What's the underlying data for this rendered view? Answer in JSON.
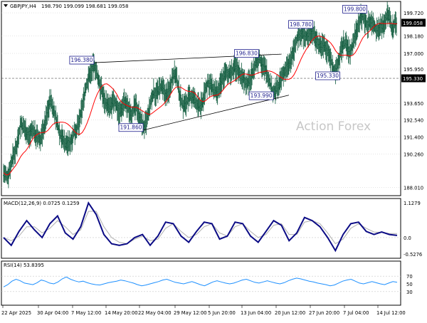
{
  "header": {
    "symbol_label": "GBPJPY,H4",
    "ohlc_label": "198.790 199.099 198.681 199.058",
    "watermark": "Action Forex"
  },
  "colors": {
    "background": "#ffffff",
    "panel_border": "#000000",
    "grid": "#c8c8c8",
    "price_bars": "#0e5a3c",
    "moving_average": "#ff0000",
    "trendline": "#000000",
    "macd_main": "#0b0b85",
    "macd_signal": "#b0b0b0",
    "rsi_line": "#1e90ff",
    "annotation_text": "#1e1e8c",
    "current_price_box": "#000000",
    "level_box": "#000000",
    "watermark": "#c7c7c7"
  },
  "chart_data": [
    {
      "type": "candlestick-ohlc",
      "panel": "price",
      "title": "GBPJPY,H4",
      "ylim": [
        187.6,
        200.2
      ],
      "grid": true,
      "y_ticks": [
        199.72,
        198.18,
        197.0,
        195.95,
        193.65,
        192.54,
        191.4,
        190.26,
        188.01
      ],
      "y_tick_labels": [
        "199.720",
        "198.180",
        "197.000",
        "195.950",
        "193.650",
        "192.540",
        "191.400",
        "190.260",
        "188.010"
      ],
      "x_tick_labels": [
        "22 Apr 2025",
        "30 Apr 04:00",
        "7 May 12:00",
        "14 May 20:00",
        "22 May 04:00",
        "29 May 12:00",
        "5 Jun 20:00",
        "13 Jun 04:00",
        "20 Jun 12:00",
        "27 Jun 20:00",
        "7 Jul 04:00",
        "14 Jul 12:00"
      ],
      "current_price": 199.058,
      "current_price_label": "199.058",
      "horizontal_level": 195.33,
      "horizontal_level_label": "195.330",
      "annotations": [
        {
          "text": "196.380",
          "value": 196.38,
          "bar": 37
        },
        {
          "text": "191.860",
          "value": 191.86,
          "bar": 57
        },
        {
          "text": "196.830",
          "value": 196.83,
          "bar": 104
        },
        {
          "text": "193.990",
          "value": 193.99,
          "bar": 110
        },
        {
          "text": "198.780",
          "value": 198.78,
          "bar": 126
        },
        {
          "text": "195.330",
          "value": 195.33,
          "bar": 137
        },
        {
          "text": "199.800",
          "value": 199.8,
          "bar": 148
        }
      ],
      "trendlines": [
        {
          "from": {
            "bar": 37,
            "value": 196.38
          },
          "to": {
            "bar": 113,
            "value": 196.95
          }
        },
        {
          "from": {
            "bar": 57,
            "value": 191.86
          },
          "to": {
            "bar": 116,
            "value": 194.2
          }
        }
      ],
      "closes": [
        189.0,
        188.7,
        188.9,
        189.6,
        190.2,
        190.5,
        191.5,
        192.3,
        192.0,
        191.9,
        191.4,
        191.7,
        191.9,
        191.5,
        191.3,
        191.2,
        191.8,
        192.4,
        193.2,
        193.9,
        193.4,
        192.8,
        192.2,
        191.6,
        191.3,
        191.0,
        190.9,
        191.0,
        191.4,
        191.8,
        192.0,
        192.5,
        193.4,
        194.4,
        195.0,
        195.6,
        196.0,
        196.2,
        195.5,
        195.0,
        194.4,
        193.9,
        193.6,
        193.3,
        193.5,
        193.8,
        193.5,
        193.0,
        193.3,
        193.8,
        193.5,
        193.2,
        193.0,
        193.3,
        193.4,
        193.0,
        192.4,
        192.0,
        192.3,
        193.0,
        193.8,
        194.4,
        194.3,
        194.5,
        194.7,
        194.5,
        194.2,
        194.4,
        195.0,
        195.7,
        195.5,
        194.8,
        194.0,
        193.5,
        193.6,
        193.9,
        194.1,
        194.0,
        193.8,
        193.5,
        193.4,
        193.8,
        194.5,
        195.0,
        194.9,
        194.6,
        194.4,
        194.2,
        194.8,
        195.3,
        195.6,
        195.7,
        195.6,
        195.8,
        196.0,
        196.0,
        195.7,
        195.4,
        195.2,
        195.0,
        195.1,
        195.6,
        196.1,
        196.4,
        196.7,
        196.3,
        196.0,
        195.8,
        195.2,
        194.6,
        194.3,
        194.6,
        194.9,
        195.3,
        195.7,
        196.0,
        196.2,
        196.6,
        197.2,
        197.8,
        198.3,
        198.4,
        198.2,
        198.1,
        198.3,
        198.6,
        198.3,
        198.0,
        197.7,
        197.5,
        197.6,
        197.4,
        197.0,
        196.6,
        196.0,
        195.7,
        196.3,
        197.0,
        197.6,
        197.7,
        197.3,
        197.0,
        197.6,
        198.3,
        198.9,
        199.4,
        199.5,
        199.1,
        198.9,
        199.2,
        199.1,
        198.7,
        198.6,
        198.8,
        198.8,
        199.2,
        199.6,
        199.3,
        198.7,
        199.0,
        199.058
      ],
      "ma_period": 55
    },
    {
      "type": "line",
      "panel": "macd",
      "title": "MACD(12,26,9) 0.0725 0.1259",
      "ylim": [
        -0.6,
        1.15
      ],
      "y_ticks": [
        1.1279,
        0.0,
        -0.5276
      ],
      "y_tick_labels": [
        "1.1279",
        "0.0",
        "-0.5276"
      ],
      "series": [
        {
          "name": "MACD",
          "values": [
            0.0,
            -0.25,
            0.2,
            0.55,
            0.25,
            0.0,
            0.45,
            0.7,
            0.15,
            -0.05,
            0.35,
            1.12,
            0.75,
            0.1,
            -0.2,
            -0.25,
            -0.2,
            0.0,
            0.1,
            -0.25,
            0.05,
            0.5,
            0.45,
            0.05,
            -0.15,
            0.2,
            0.5,
            0.45,
            -0.05,
            0.05,
            0.5,
            0.45,
            0.05,
            -0.15,
            0.2,
            0.55,
            0.4,
            -0.1,
            0.15,
            0.65,
            0.55,
            0.35,
            0.0,
            -0.42,
            0.1,
            0.45,
            0.5,
            0.2,
            0.1,
            0.18,
            0.1,
            0.07
          ]
        },
        {
          "name": "Signal",
          "values": [
            0.0,
            -0.1,
            0.05,
            0.35,
            0.35,
            0.15,
            0.3,
            0.55,
            0.35,
            0.1,
            0.25,
            0.85,
            0.85,
            0.35,
            0.0,
            -0.15,
            -0.2,
            -0.05,
            0.05,
            -0.1,
            -0.05,
            0.3,
            0.45,
            0.2,
            0.0,
            0.1,
            0.35,
            0.45,
            0.15,
            0.05,
            0.35,
            0.45,
            0.2,
            0.0,
            0.1,
            0.4,
            0.45,
            0.1,
            0.1,
            0.5,
            0.55,
            0.45,
            0.15,
            -0.2,
            -0.05,
            0.3,
            0.45,
            0.3,
            0.18,
            0.17,
            0.13,
            0.13
          ]
        }
      ]
    },
    {
      "type": "line",
      "panel": "rsi",
      "title": "RSI(14) 53.8395",
      "ylim": [
        0,
        100
      ],
      "y_ticks": [
        70,
        50,
        30
      ],
      "y_tick_labels": [
        "70",
        "50",
        "30"
      ],
      "reference_lines": [
        70,
        30
      ],
      "series": [
        {
          "name": "RSI(14)",
          "values": [
            42,
            48,
            57,
            62,
            58,
            52,
            50,
            48,
            53,
            60,
            57,
            52,
            50,
            55,
            63,
            68,
            62,
            58,
            55,
            57,
            53,
            50,
            48,
            47,
            50,
            53,
            55,
            57,
            60,
            58,
            55,
            52,
            48,
            45,
            47,
            50,
            53,
            56,
            60,
            62,
            58,
            54,
            52,
            50,
            53,
            56,
            52,
            48,
            45,
            50,
            55,
            58,
            55,
            52,
            50,
            52,
            56,
            60,
            62,
            58,
            54,
            52,
            55,
            58,
            55,
            52,
            50,
            53,
            58,
            62,
            65,
            63,
            60,
            57,
            55,
            52,
            50,
            48,
            45,
            47,
            52,
            57,
            60,
            62,
            57,
            52,
            50,
            53,
            56,
            53,
            50,
            48,
            52,
            56,
            54
          ]
        }
      ]
    }
  ]
}
